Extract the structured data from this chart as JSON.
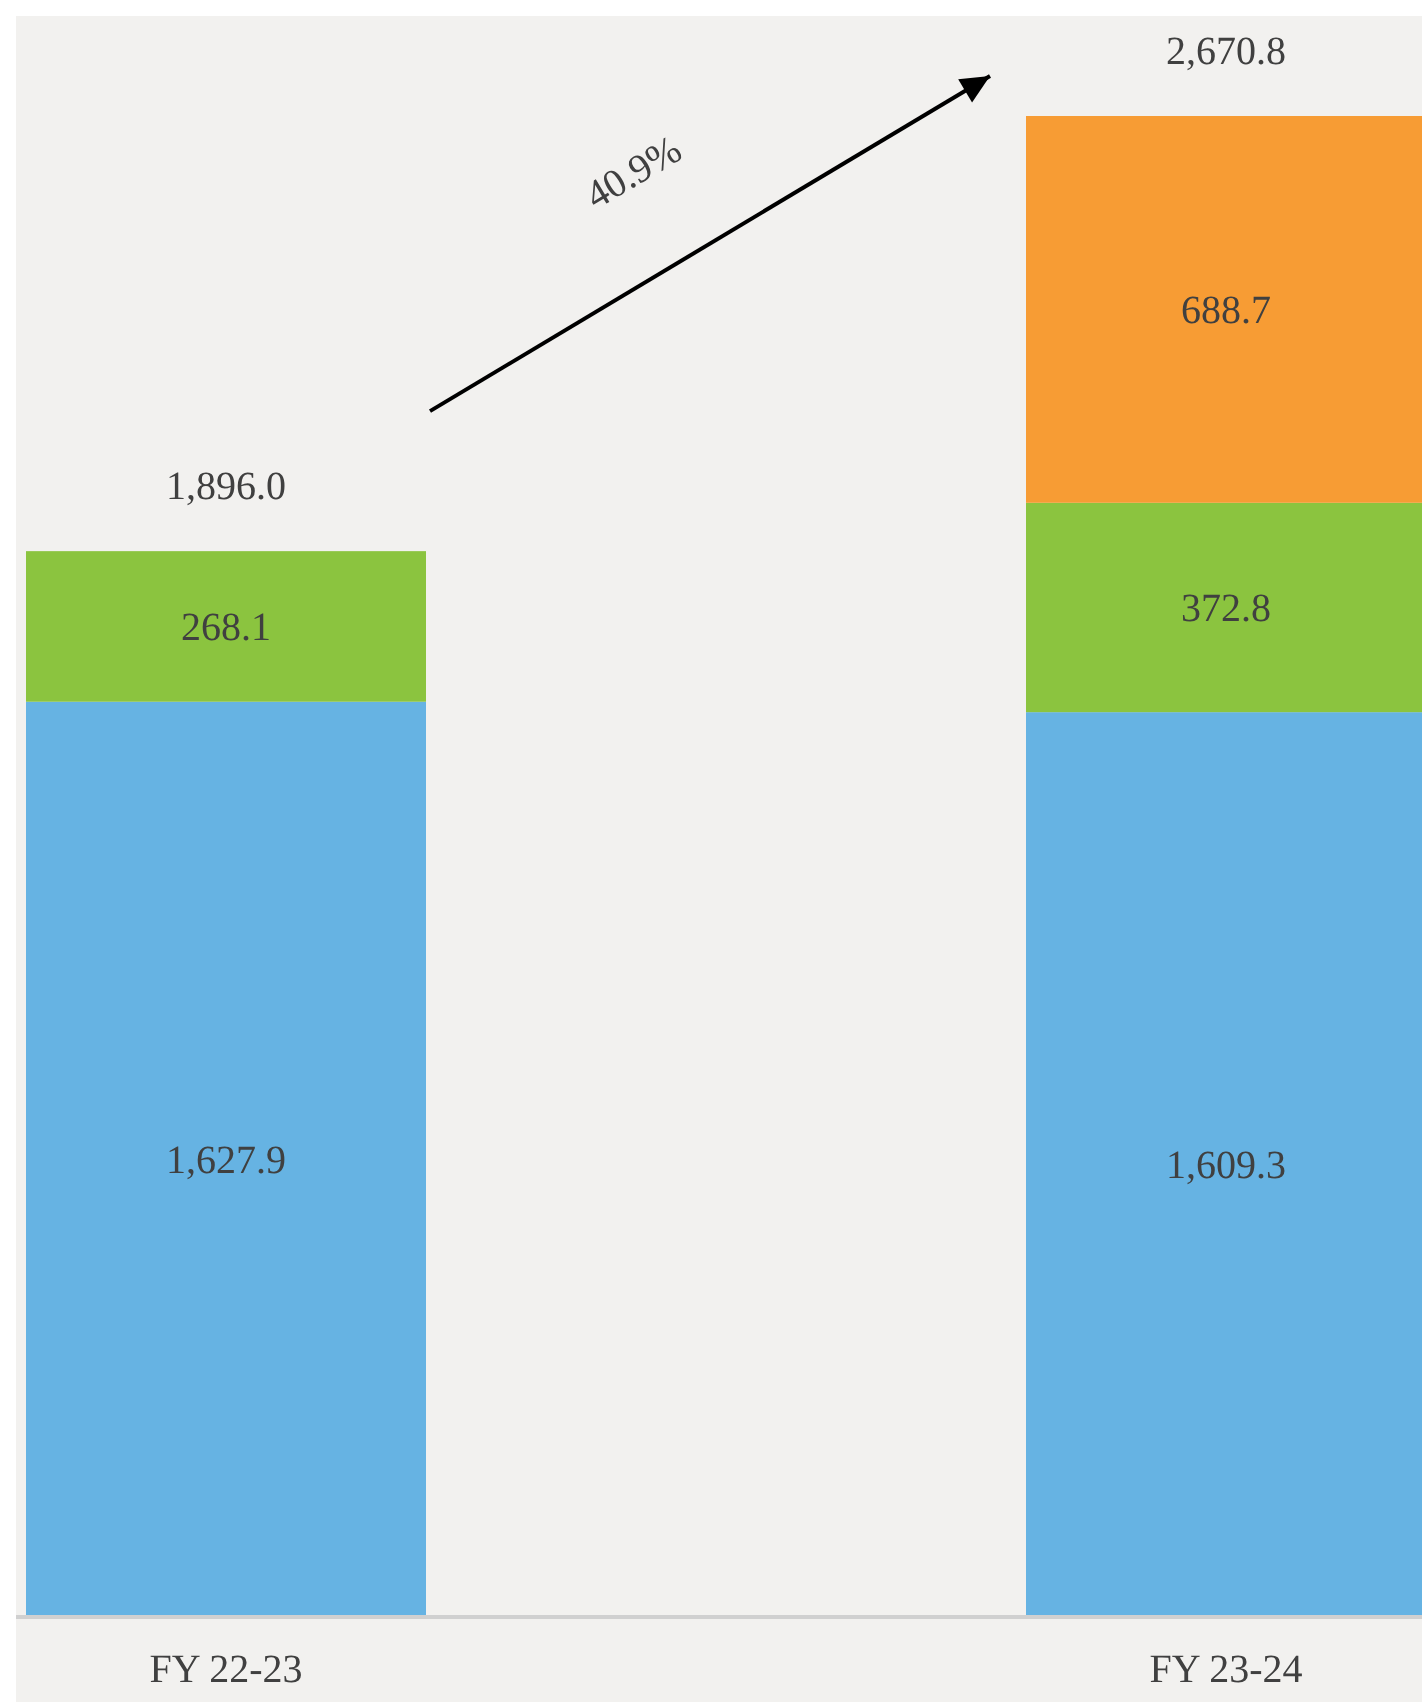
{
  "chart_data": {
    "type": "bar",
    "stacked": true,
    "categories": [
      "FY 22-23",
      "FY 23-24"
    ],
    "series": [
      {
        "color": "#66b3e3",
        "values": [
          1627.9,
          1609.3
        ],
        "value_labels": [
          "1,627.9",
          "1,609.3"
        ]
      },
      {
        "color": "#8bc43f",
        "values": [
          268.1,
          372.8
        ],
        "value_labels": [
          "268.1",
          "372.8"
        ]
      },
      {
        "color": "#f79c34",
        "values": [
          null,
          688.7
        ],
        "value_labels": [
          null,
          "688.7"
        ]
      }
    ],
    "totals": [
      "1,896.0",
      "2,670.8"
    ],
    "annotations": [
      "40.9%"
    ]
  }
}
